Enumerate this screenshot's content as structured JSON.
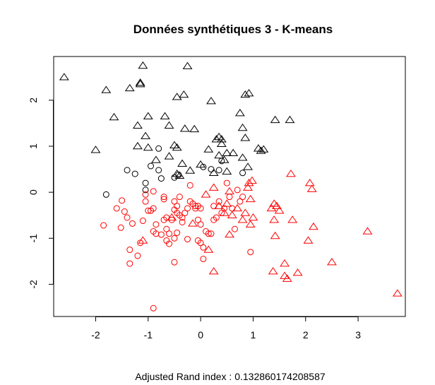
{
  "chart_data": {
    "type": "scatter",
    "title": "Données synthétiques 3 - K-means",
    "xlabel": "Adjusted Rand index : 0.132860174208587",
    "ylabel": "",
    "xlim": [
      -2.8,
      3.9
    ],
    "ylim": [
      -2.7,
      2.95
    ],
    "xticks": [
      -2,
      -1,
      0,
      1,
      2,
      3
    ],
    "yticks": [
      -2,
      -1,
      0,
      1,
      2
    ],
    "grid": false,
    "legend": "none",
    "markers": {
      "circle": "true class 1",
      "triangle": "true class 2"
    },
    "series": [
      {
        "color": "#000000",
        "points": [
          {
            "x": -1.8,
            "y": -0.05,
            "shape": "circle"
          },
          {
            "x": -1.4,
            "y": 0.48,
            "shape": "circle"
          },
          {
            "x": -1.25,
            "y": 0.4,
            "shape": "circle"
          },
          {
            "x": -1.05,
            "y": 0.2,
            "shape": "circle"
          },
          {
            "x": -1.05,
            "y": 0.05,
            "shape": "circle"
          },
          {
            "x": -0.95,
            "y": 0.57,
            "shape": "circle"
          },
          {
            "x": -0.8,
            "y": 0.95,
            "shape": "circle"
          },
          {
            "x": -0.8,
            "y": 0.48,
            "shape": "circle"
          },
          {
            "x": -0.75,
            "y": 0.3,
            "shape": "circle"
          },
          {
            "x": -0.5,
            "y": 0.32,
            "shape": "circle"
          },
          {
            "x": -0.42,
            "y": 0.38,
            "shape": "circle"
          },
          {
            "x": 0.05,
            "y": 0.55,
            "shape": "circle"
          },
          {
            "x": 0.2,
            "y": 0.5,
            "shape": "circle"
          },
          {
            "x": 0.35,
            "y": 0.48,
            "shape": "circle"
          },
          {
            "x": 0.4,
            "y": 0.68,
            "shape": "circle"
          },
          {
            "x": 0.8,
            "y": 0.42,
            "shape": "circle"
          },
          {
            "x": -2.6,
            "y": 2.5,
            "shape": "triangle"
          },
          {
            "x": -1.8,
            "y": 2.22,
            "shape": "triangle"
          },
          {
            "x": -1.65,
            "y": 1.63,
            "shape": "triangle"
          },
          {
            "x": -2.0,
            "y": 0.92,
            "shape": "triangle"
          },
          {
            "x": -1.35,
            "y": 2.26,
            "shape": "triangle"
          },
          {
            "x": -1.15,
            "y": 2.35,
            "shape": "triangle"
          },
          {
            "x": -1.15,
            "y": 2.38,
            "shape": "triangle"
          },
          {
            "x": -1.1,
            "y": 2.75,
            "shape": "triangle"
          },
          {
            "x": -1.2,
            "y": 1.45,
            "shape": "triangle"
          },
          {
            "x": -1.05,
            "y": 1.22,
            "shape": "triangle"
          },
          {
            "x": -1.0,
            "y": 1.65,
            "shape": "triangle"
          },
          {
            "x": -1.2,
            "y": 1.0,
            "shape": "triangle"
          },
          {
            "x": -1.0,
            "y": 0.97,
            "shape": "triangle"
          },
          {
            "x": -0.85,
            "y": 0.7,
            "shape": "triangle"
          },
          {
            "x": -0.68,
            "y": 1.65,
            "shape": "triangle"
          },
          {
            "x": -0.6,
            "y": 1.45,
            "shape": "triangle"
          },
          {
            "x": -0.5,
            "y": 1.02,
            "shape": "triangle"
          },
          {
            "x": -0.45,
            "y": 0.97,
            "shape": "triangle"
          },
          {
            "x": -0.6,
            "y": 0.78,
            "shape": "triangle"
          },
          {
            "x": -0.45,
            "y": 2.07,
            "shape": "triangle"
          },
          {
            "x": -0.32,
            "y": 2.12,
            "shape": "triangle"
          },
          {
            "x": -0.25,
            "y": 2.74,
            "shape": "triangle"
          },
          {
            "x": -0.3,
            "y": 1.38,
            "shape": "triangle"
          },
          {
            "x": -0.12,
            "y": 1.37,
            "shape": "triangle"
          },
          {
            "x": -0.35,
            "y": 0.62,
            "shape": "triangle"
          },
          {
            "x": -0.4,
            "y": 0.36,
            "shape": "triangle"
          },
          {
            "x": -0.45,
            "y": 0.4,
            "shape": "triangle"
          },
          {
            "x": -0.2,
            "y": 0.47,
            "shape": "triangle"
          },
          {
            "x": 0.0,
            "y": 0.6,
            "shape": "triangle"
          },
          {
            "x": 0.2,
            "y": 1.98,
            "shape": "triangle"
          },
          {
            "x": 0.15,
            "y": 0.93,
            "shape": "triangle"
          },
          {
            "x": 0.3,
            "y": 1.15,
            "shape": "triangle"
          },
          {
            "x": 0.35,
            "y": 1.2,
            "shape": "triangle"
          },
          {
            "x": 0.4,
            "y": 1.15,
            "shape": "triangle"
          },
          {
            "x": 0.4,
            "y": 1.05,
            "shape": "triangle"
          },
          {
            "x": 0.35,
            "y": 0.8,
            "shape": "triangle"
          },
          {
            "x": 0.5,
            "y": 0.85,
            "shape": "triangle"
          },
          {
            "x": 0.62,
            "y": 0.85,
            "shape": "triangle"
          },
          {
            "x": 0.45,
            "y": 0.7,
            "shape": "triangle"
          },
          {
            "x": 0.5,
            "y": 0.45,
            "shape": "triangle"
          },
          {
            "x": 0.25,
            "y": 0.42,
            "shape": "triangle"
          },
          {
            "x": 0.75,
            "y": 1.72,
            "shape": "triangle"
          },
          {
            "x": 0.8,
            "y": 1.4,
            "shape": "triangle"
          },
          {
            "x": 0.85,
            "y": 1.18,
            "shape": "triangle"
          },
          {
            "x": 0.8,
            "y": 0.75,
            "shape": "triangle"
          },
          {
            "x": 0.9,
            "y": 0.55,
            "shape": "triangle"
          },
          {
            "x": 0.85,
            "y": 2.12,
            "shape": "triangle"
          },
          {
            "x": 0.92,
            "y": 2.15,
            "shape": "triangle"
          },
          {
            "x": 1.1,
            "y": 0.95,
            "shape": "triangle"
          },
          {
            "x": 1.15,
            "y": 0.9,
            "shape": "triangle"
          },
          {
            "x": 1.2,
            "y": 0.93,
            "shape": "triangle"
          },
          {
            "x": 1.42,
            "y": 1.57,
            "shape": "triangle"
          },
          {
            "x": 1.7,
            "y": 1.57,
            "shape": "triangle"
          }
        ]
      },
      {
        "color": "#ff0000",
        "points": [
          {
            "x": -1.85,
            "y": -0.72,
            "shape": "circle"
          },
          {
            "x": -1.6,
            "y": -0.35,
            "shape": "circle"
          },
          {
            "x": -1.5,
            "y": -0.18,
            "shape": "circle"
          },
          {
            "x": -1.45,
            "y": -0.42,
            "shape": "circle"
          },
          {
            "x": -1.52,
            "y": -0.77,
            "shape": "circle"
          },
          {
            "x": -1.4,
            "y": -0.55,
            "shape": "circle"
          },
          {
            "x": -1.35,
            "y": -1.25,
            "shape": "circle"
          },
          {
            "x": -1.35,
            "y": -1.55,
            "shape": "circle"
          },
          {
            "x": -1.3,
            "y": -0.68,
            "shape": "circle"
          },
          {
            "x": -1.2,
            "y": -1.38,
            "shape": "circle"
          },
          {
            "x": -1.15,
            "y": -1.1,
            "shape": "circle"
          },
          {
            "x": -1.05,
            "y": -0.05,
            "shape": "circle"
          },
          {
            "x": -1.05,
            "y": -0.2,
            "shape": "circle"
          },
          {
            "x": -1.1,
            "y": -0.62,
            "shape": "circle"
          },
          {
            "x": -1.0,
            "y": -0.4,
            "shape": "circle"
          },
          {
            "x": -0.95,
            "y": -0.4,
            "shape": "circle"
          },
          {
            "x": -0.9,
            "y": -0.35,
            "shape": "circle"
          },
          {
            "x": -0.9,
            "y": 0.02,
            "shape": "circle"
          },
          {
            "x": -0.85,
            "y": -0.7,
            "shape": "circle"
          },
          {
            "x": -0.9,
            "y": -0.85,
            "shape": "circle"
          },
          {
            "x": -0.85,
            "y": -0.9,
            "shape": "circle"
          },
          {
            "x": -0.75,
            "y": -0.92,
            "shape": "circle"
          },
          {
            "x": -0.7,
            "y": -0.6,
            "shape": "circle"
          },
          {
            "x": -0.7,
            "y": -0.1,
            "shape": "circle"
          },
          {
            "x": -0.7,
            "y": -0.15,
            "shape": "circle"
          },
          {
            "x": -0.65,
            "y": -0.55,
            "shape": "circle"
          },
          {
            "x": -0.65,
            "y": -0.8,
            "shape": "circle"
          },
          {
            "x": -0.6,
            "y": -0.9,
            "shape": "circle"
          },
          {
            "x": -0.65,
            "y": -1.05,
            "shape": "circle"
          },
          {
            "x": -0.6,
            "y": -1.12,
            "shape": "circle"
          },
          {
            "x": -0.55,
            "y": -0.6,
            "shape": "circle"
          },
          {
            "x": -0.5,
            "y": -0.2,
            "shape": "circle"
          },
          {
            "x": -0.5,
            "y": -0.38,
            "shape": "circle"
          },
          {
            "x": -0.45,
            "y": -0.3,
            "shape": "circle"
          },
          {
            "x": -0.45,
            "y": -0.45,
            "shape": "circle"
          },
          {
            "x": -0.45,
            "y": -0.88,
            "shape": "circle"
          },
          {
            "x": -0.5,
            "y": -1.0,
            "shape": "circle"
          },
          {
            "x": -0.5,
            "y": -1.52,
            "shape": "circle"
          },
          {
            "x": -0.4,
            "y": -0.1,
            "shape": "circle"
          },
          {
            "x": -0.4,
            "y": -0.5,
            "shape": "circle"
          },
          {
            "x": -0.35,
            "y": -0.55,
            "shape": "circle"
          },
          {
            "x": -0.35,
            "y": -0.65,
            "shape": "circle"
          },
          {
            "x": -0.3,
            "y": -0.45,
            "shape": "circle"
          },
          {
            "x": -0.25,
            "y": -0.35,
            "shape": "circle"
          },
          {
            "x": -0.25,
            "y": -1.02,
            "shape": "circle"
          },
          {
            "x": -0.2,
            "y": 0.15,
            "shape": "circle"
          },
          {
            "x": -0.2,
            "y": -0.2,
            "shape": "circle"
          },
          {
            "x": -0.15,
            "y": -0.25,
            "shape": "circle"
          },
          {
            "x": -0.1,
            "y": -0.3,
            "shape": "circle"
          },
          {
            "x": -0.1,
            "y": -0.35,
            "shape": "circle"
          },
          {
            "x": -0.05,
            "y": -0.3,
            "shape": "circle"
          },
          {
            "x": -0.05,
            "y": -0.6,
            "shape": "circle"
          },
          {
            "x": -0.05,
            "y": -1.05,
            "shape": "circle"
          },
          {
            "x": 0.0,
            "y": -0.35,
            "shape": "circle"
          },
          {
            "x": 0.0,
            "y": -0.7,
            "shape": "circle"
          },
          {
            "x": 0.0,
            "y": -1.1,
            "shape": "circle"
          },
          {
            "x": 0.05,
            "y": -1.2,
            "shape": "circle"
          },
          {
            "x": 0.05,
            "y": -1.45,
            "shape": "circle"
          },
          {
            "x": 0.1,
            "y": -0.85,
            "shape": "circle"
          },
          {
            "x": 0.15,
            "y": -0.9,
            "shape": "circle"
          },
          {
            "x": 0.2,
            "y": -0.9,
            "shape": "circle"
          },
          {
            "x": 0.25,
            "y": -0.6,
            "shape": "circle"
          },
          {
            "x": 0.25,
            "y": -0.3,
            "shape": "circle"
          },
          {
            "x": 0.3,
            "y": -0.55,
            "shape": "circle"
          },
          {
            "x": 0.35,
            "y": -0.2,
            "shape": "circle"
          },
          {
            "x": 0.4,
            "y": -0.45,
            "shape": "circle"
          },
          {
            "x": 0.45,
            "y": -0.35,
            "shape": "circle"
          },
          {
            "x": 0.5,
            "y": 0.2,
            "shape": "circle"
          },
          {
            "x": 0.55,
            "y": -0.1,
            "shape": "circle"
          },
          {
            "x": 0.6,
            "y": -0.35,
            "shape": "circle"
          },
          {
            "x": 0.65,
            "y": -0.8,
            "shape": "circle"
          },
          {
            "x": 0.7,
            "y": 0.05,
            "shape": "circle"
          },
          {
            "x": 0.75,
            "y": -0.2,
            "shape": "circle"
          },
          {
            "x": 0.8,
            "y": -0.1,
            "shape": "circle"
          },
          {
            "x": 0.95,
            "y": -1.3,
            "shape": "circle"
          },
          {
            "x": -0.9,
            "y": -2.52,
            "shape": "circle"
          },
          {
            "x": -1.1,
            "y": -1.05,
            "shape": "triangle"
          },
          {
            "x": -0.55,
            "y": -0.55,
            "shape": "triangle"
          },
          {
            "x": -0.15,
            "y": -0.68,
            "shape": "triangle"
          },
          {
            "x": 0.1,
            "y": -0.05,
            "shape": "triangle"
          },
          {
            "x": 0.15,
            "y": -1.25,
            "shape": "triangle"
          },
          {
            "x": 0.25,
            "y": 0.1,
            "shape": "triangle"
          },
          {
            "x": 0.25,
            "y": -1.72,
            "shape": "triangle"
          },
          {
            "x": 0.35,
            "y": -0.3,
            "shape": "triangle"
          },
          {
            "x": 0.45,
            "y": -0.45,
            "shape": "triangle"
          },
          {
            "x": 0.5,
            "y": -0.25,
            "shape": "triangle"
          },
          {
            "x": 0.55,
            "y": 0.02,
            "shape": "triangle"
          },
          {
            "x": 0.55,
            "y": -0.92,
            "shape": "triangle"
          },
          {
            "x": 0.6,
            "y": -0.5,
            "shape": "triangle"
          },
          {
            "x": 0.7,
            "y": -0.35,
            "shape": "triangle"
          },
          {
            "x": 0.8,
            "y": -0.6,
            "shape": "triangle"
          },
          {
            "x": 0.85,
            "y": -0.45,
            "shape": "triangle"
          },
          {
            "x": 0.9,
            "y": 0.1,
            "shape": "triangle"
          },
          {
            "x": 0.92,
            "y": 0.2,
            "shape": "triangle"
          },
          {
            "x": 0.95,
            "y": -0.15,
            "shape": "triangle"
          },
          {
            "x": 0.95,
            "y": -0.7,
            "shape": "triangle"
          },
          {
            "x": 0.98,
            "y": 0.25,
            "shape": "triangle"
          },
          {
            "x": 1.0,
            "y": -0.55,
            "shape": "triangle"
          },
          {
            "x": 1.35,
            "y": -0.35,
            "shape": "triangle"
          },
          {
            "x": 1.38,
            "y": -1.72,
            "shape": "triangle"
          },
          {
            "x": 1.4,
            "y": -0.25,
            "shape": "triangle"
          },
          {
            "x": 1.4,
            "y": -0.6,
            "shape": "triangle"
          },
          {
            "x": 1.42,
            "y": -0.95,
            "shape": "triangle"
          },
          {
            "x": 1.45,
            "y": -0.3,
            "shape": "triangle"
          },
          {
            "x": 1.5,
            "y": -0.4,
            "shape": "triangle"
          },
          {
            "x": 1.6,
            "y": -1.55,
            "shape": "triangle"
          },
          {
            "x": 1.6,
            "y": -1.82,
            "shape": "triangle"
          },
          {
            "x": 1.65,
            "y": -1.88,
            "shape": "triangle"
          },
          {
            "x": 1.72,
            "y": 0.4,
            "shape": "triangle"
          },
          {
            "x": 1.75,
            "y": -0.6,
            "shape": "triangle"
          },
          {
            "x": 1.85,
            "y": -1.75,
            "shape": "triangle"
          },
          {
            "x": 2.05,
            "y": -1.05,
            "shape": "triangle"
          },
          {
            "x": 2.08,
            "y": 0.2,
            "shape": "triangle"
          },
          {
            "x": 2.12,
            "y": 0.07,
            "shape": "triangle"
          },
          {
            "x": 2.15,
            "y": -0.75,
            "shape": "triangle"
          },
          {
            "x": 2.5,
            "y": -1.52,
            "shape": "triangle"
          },
          {
            "x": 3.18,
            "y": -0.85,
            "shape": "triangle"
          },
          {
            "x": 3.75,
            "y": -2.2,
            "shape": "triangle"
          }
        ]
      }
    ]
  }
}
